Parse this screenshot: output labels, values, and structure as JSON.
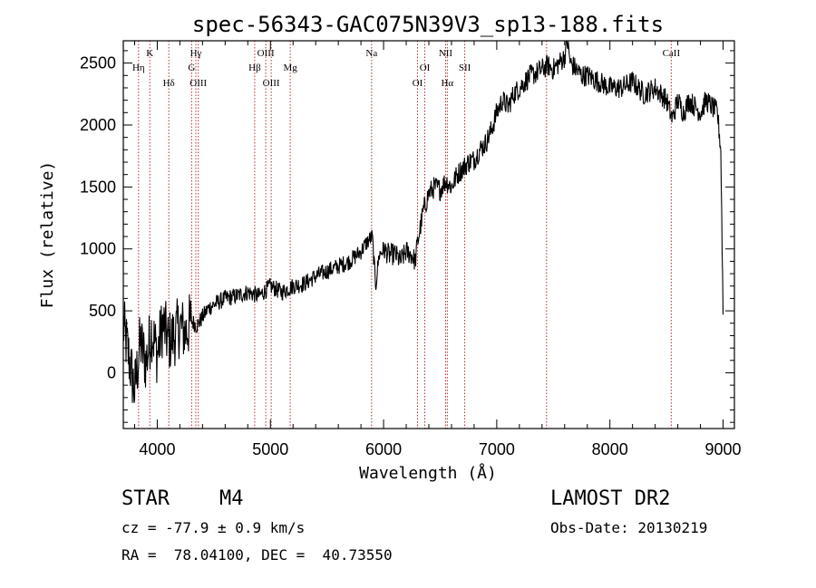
{
  "chart_data": {
    "type": "line",
    "title": "spec-56343-GAC075N39V3_sp13-188.fits",
    "xlabel": "Wavelength (Å)",
    "ylabel": "Flux (relative)",
    "xlim": [
      3700,
      9100
    ],
    "ylim": [
      -450,
      2680
    ],
    "xticks": [
      4000,
      5000,
      6000,
      7000,
      8000,
      9000
    ],
    "yticks": [
      0,
      500,
      1000,
      1500,
      2000,
      2500
    ],
    "xtick_labels": [
      "4000",
      "5000",
      "6000",
      "7000",
      "8000",
      "9000"
    ],
    "ytick_labels": [
      "0",
      "500",
      "1000",
      "1500",
      "2000",
      "2500"
    ],
    "grid": false,
    "series": [
      {
        "x": [
          3700,
          3750,
          3800,
          3850,
          3900,
          3950,
          4000,
          4050,
          4100,
          4150,
          4200,
          4250,
          4300,
          4350,
          4400,
          4450,
          4500,
          4600,
          4700,
          4800,
          4900,
          5000,
          5100,
          5200,
          5300,
          5400,
          5500,
          5600,
          5700,
          5800,
          5850,
          5900,
          5930,
          5960,
          6000,
          6050,
          6100,
          6150,
          6200,
          6250,
          6280,
          6300,
          6320,
          6350,
          6400,
          6450,
          6500,
          6550,
          6600,
          6650,
          6700,
          6750,
          6800,
          6850,
          6900,
          6950,
          7000,
          7050,
          7100,
          7150,
          7200,
          7250,
          7300,
          7350,
          7400,
          7450,
          7500,
          7550,
          7600,
          7620,
          7650,
          7700,
          7750,
          7800,
          7900,
          8000,
          8100,
          8200,
          8300,
          8400,
          8450,
          8500,
          8550,
          8600,
          8650,
          8700,
          8750,
          8800,
          8850,
          8900,
          8950,
          8980,
          9000
        ],
        "y": [
          380,
          120,
          -150,
          250,
          80,
          350,
          150,
          400,
          250,
          300,
          380,
          320,
          420,
          380,
          450,
          520,
          550,
          600,
          620,
          650,
          620,
          700,
          650,
          700,
          720,
          780,
          820,
          860,
          900,
          980,
          1050,
          1100,
          700,
          950,
          1000,
          950,
          960,
          900,
          980,
          950,
          900,
          1050,
          1150,
          1300,
          1450,
          1500,
          1480,
          1550,
          1500,
          1600,
          1650,
          1700,
          1720,
          1800,
          1850,
          1950,
          2100,
          2200,
          2150,
          2250,
          2300,
          2350,
          2400,
          2420,
          2450,
          2480,
          2450,
          2500,
          2550,
          2700,
          2500,
          2450,
          2400,
          2400,
          2350,
          2300,
          2300,
          2350,
          2250,
          2300,
          2250,
          2200,
          2050,
          2200,
          2100,
          2200,
          2150,
          2100,
          2200,
          2150,
          2100,
          1800,
          500
        ]
      }
    ],
    "lines": [
      {
        "label": "Hη",
        "x": 3835,
        "row": 2
      },
      {
        "label": "K",
        "x": 3934,
        "row": 1
      },
      {
        "label": "Hδ",
        "x": 4102,
        "row": 3
      },
      {
        "label": "G",
        "x": 4304,
        "row": 2
      },
      {
        "label": "Hγ",
        "x": 4341,
        "row": 1
      },
      {
        "label": "OIII",
        "x": 4363,
        "row": 3
      },
      {
        "label": "Hβ",
        "x": 4861,
        "row": 2
      },
      {
        "label": "OIII",
        "x": 4959,
        "row": 1
      },
      {
        "label": "OIII",
        "x": 5007,
        "row": 3
      },
      {
        "label": "Mg",
        "x": 5175,
        "row": 2
      },
      {
        "label": "Na",
        "x": 5894,
        "row": 1
      },
      {
        "label": "OI",
        "x": 6300,
        "row": 3
      },
      {
        "label": "OI",
        "x": 6364,
        "row": 2
      },
      {
        "label": "NII",
        "x": 6548,
        "row": 1
      },
      {
        "label": "Hα",
        "x": 6563,
        "row": 3
      },
      {
        "label": "SII",
        "x": 6717,
        "row": 2
      },
      {
        "label": "",
        "x": 7440,
        "row": 0
      },
      {
        "label": "CaII",
        "x": 8542,
        "row": 1
      }
    ]
  },
  "info": {
    "class": "STAR",
    "subclass": "M4",
    "cz": "cz = -77.9 ± 0.9 km/s",
    "radec": "RA =  78.04100, DEC =  40.73550",
    "survey": "LAMOST DR2",
    "obs_date": "Obs-Date: 20130219"
  },
  "colors": {
    "spectrum": "#000000",
    "line_marker": "#b03030",
    "axes": "#000000"
  }
}
